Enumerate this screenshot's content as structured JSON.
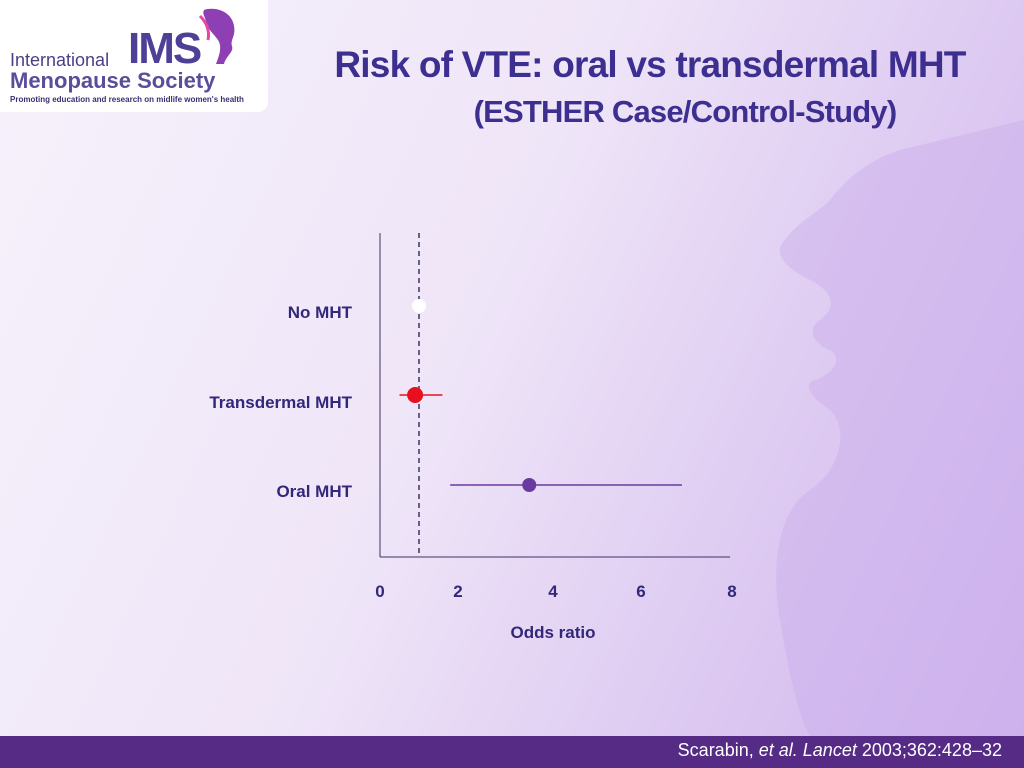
{
  "logo": {
    "line1": "International",
    "line2": "Menopause Society",
    "line3": "Promoting education and research on midlife women's health",
    "ims": "IMS",
    "mark_icon": "profile-silhouette-icon"
  },
  "slide": {
    "title": "Risk of VTE: oral vs transdermal MHT",
    "subtitle": "(ESTHER Case/Control-Study)"
  },
  "colors": {
    "title": "#3c2f8f",
    "footer": "#552b86",
    "transdermal": "#e8101e",
    "oral": "#6a3aa0",
    "reference": "#ffffff"
  },
  "chart_data": {
    "type": "forest",
    "xlabel": "Odds ratio",
    "xticks": [
      "0",
      "2",
      "4",
      "6",
      "8"
    ],
    "xlim": [
      0,
      8
    ],
    "reference_line": 1,
    "reference_line_style": "dashed",
    "rows": [
      {
        "label": "No MHT",
        "or": 1.0,
        "ci": null,
        "color": "#ffffff"
      },
      {
        "label": "Transdermal MHT",
        "or": 0.9,
        "ci": [
          0.5,
          1.6
        ],
        "color": "#e8101e"
      },
      {
        "label": "Oral MHT",
        "or": 3.5,
        "ci": [
          1.8,
          6.9
        ],
        "color": "#6a3aa0"
      }
    ]
  },
  "footer": {
    "author": "Scarabin,",
    "etal": "et al.",
    "journal": "Lancet",
    "ref": "2003;362:428–32"
  }
}
